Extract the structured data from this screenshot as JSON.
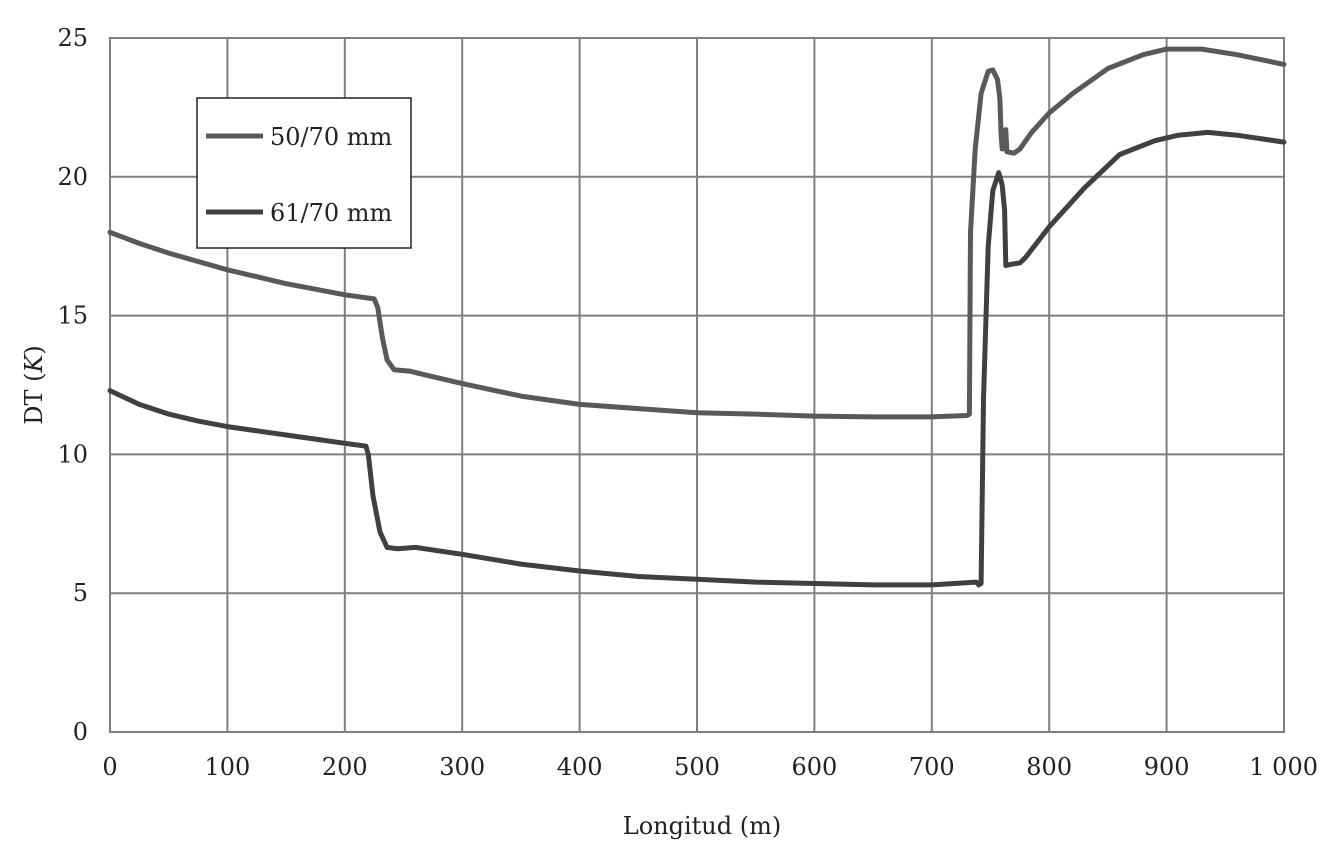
{
  "chart_data": {
    "type": "line",
    "title": "",
    "xlabel": "Longitud (m)",
    "ylabel_main": "DT (",
    "ylabel_italic": "K",
    "ylabel_end": ")",
    "xlim": [
      0,
      1000
    ],
    "ylim": [
      0,
      25
    ],
    "grid": true,
    "legend_position": "top-left",
    "x_ticks": [
      0,
      100,
      200,
      300,
      400,
      500,
      600,
      700,
      800,
      900,
      1000
    ],
    "x_tick_labels": [
      "0",
      "100",
      "200",
      "300",
      "400",
      "500",
      "600",
      "700",
      "800",
      "900",
      "1 000"
    ],
    "y_ticks": [
      0,
      5,
      10,
      15,
      20,
      25
    ],
    "y_tick_labels": [
      "0",
      "5",
      "10",
      "15",
      "20",
      "25"
    ],
    "series": [
      {
        "name": "50/70 mm",
        "color": "#595959",
        "points": [
          [
            0,
            18.0
          ],
          [
            25,
            17.6
          ],
          [
            50,
            17.25
          ],
          [
            75,
            16.95
          ],
          [
            100,
            16.65
          ],
          [
            125,
            16.4
          ],
          [
            150,
            16.15
          ],
          [
            175,
            15.95
          ],
          [
            200,
            15.75
          ],
          [
            225,
            15.6
          ],
          [
            228,
            15.3
          ],
          [
            232,
            14.2
          ],
          [
            236,
            13.4
          ],
          [
            242,
            13.05
          ],
          [
            255,
            13.0
          ],
          [
            270,
            12.85
          ],
          [
            300,
            12.55
          ],
          [
            350,
            12.1
          ],
          [
            400,
            11.8
          ],
          [
            450,
            11.65
          ],
          [
            500,
            11.5
          ],
          [
            550,
            11.45
          ],
          [
            600,
            11.38
          ],
          [
            650,
            11.35
          ],
          [
            700,
            11.35
          ],
          [
            730,
            11.4
          ],
          [
            732,
            11.45
          ],
          [
            733,
            18.0
          ],
          [
            737,
            21.0
          ],
          [
            742,
            23.0
          ],
          [
            748,
            23.8
          ],
          [
            752,
            23.85
          ],
          [
            756,
            23.5
          ],
          [
            758,
            22.8
          ],
          [
            759,
            21.5
          ],
          [
            760,
            21.0
          ],
          [
            763,
            21.7
          ],
          [
            764,
            20.9
          ],
          [
            770,
            20.85
          ],
          [
            775,
            21.0
          ],
          [
            785,
            21.6
          ],
          [
            800,
            22.3
          ],
          [
            820,
            23.0
          ],
          [
            850,
            23.9
          ],
          [
            880,
            24.4
          ],
          [
            900,
            24.6
          ],
          [
            930,
            24.6
          ],
          [
            960,
            24.4
          ],
          [
            1000,
            24.05
          ]
        ]
      },
      {
        "name": "61/70 mm",
        "color": "#404040",
        "points": [
          [
            0,
            12.3
          ],
          [
            25,
            11.8
          ],
          [
            50,
            11.45
          ],
          [
            75,
            11.2
          ],
          [
            100,
            11.0
          ],
          [
            125,
            10.85
          ],
          [
            150,
            10.7
          ],
          [
            175,
            10.55
          ],
          [
            200,
            10.4
          ],
          [
            218,
            10.3
          ],
          [
            220,
            10.0
          ],
          [
            224,
            8.5
          ],
          [
            230,
            7.2
          ],
          [
            236,
            6.65
          ],
          [
            245,
            6.6
          ],
          [
            260,
            6.65
          ],
          [
            300,
            6.4
          ],
          [
            350,
            6.05
          ],
          [
            400,
            5.8
          ],
          [
            450,
            5.6
          ],
          [
            500,
            5.5
          ],
          [
            550,
            5.4
          ],
          [
            600,
            5.35
          ],
          [
            650,
            5.3
          ],
          [
            700,
            5.3
          ],
          [
            738,
            5.4
          ],
          [
            740,
            5.3
          ],
          [
            742,
            5.35
          ],
          [
            744,
            12.0
          ],
          [
            748,
            17.5
          ],
          [
            752,
            19.5
          ],
          [
            757,
            20.15
          ],
          [
            760,
            19.7
          ],
          [
            762,
            18.8
          ],
          [
            763,
            16.8
          ],
          [
            768,
            16.85
          ],
          [
            775,
            16.9
          ],
          [
            780,
            17.1
          ],
          [
            800,
            18.2
          ],
          [
            830,
            19.6
          ],
          [
            860,
            20.8
          ],
          [
            890,
            21.3
          ],
          [
            910,
            21.5
          ],
          [
            935,
            21.6
          ],
          [
            960,
            21.5
          ],
          [
            1000,
            21.25
          ]
        ]
      }
    ]
  }
}
